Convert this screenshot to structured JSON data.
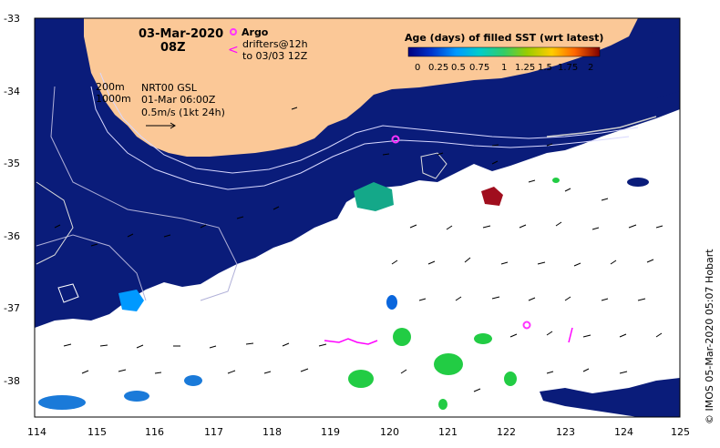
{
  "map": {
    "date": "03-Mar-2020",
    "time": "08Z",
    "argo_label": "Argo",
    "drifters_label_1": "drifters@12h",
    "drifters_label_2": "to 03/03 12Z",
    "contour_200": "200m",
    "contour_1000": "1000m",
    "gsl_label": "NRT00 GSL",
    "gsl_time": "01-Mar 06:00Z",
    "speed_ref": "0.5m/s (1kt 24h)",
    "credit": "© IMOS 05-Mar-2020 05:07 Hobart",
    "longitude_ticks": [
      "114",
      "115",
      "116",
      "117",
      "118",
      "119",
      "120",
      "121",
      "122",
      "123",
      "124",
      "125"
    ],
    "latitude_ticks": [
      "-33",
      "-34",
      "-35",
      "-36",
      "-37",
      "-38"
    ],
    "colors": {
      "land": "#fbc897",
      "ocean_recent": "#0a1c7a",
      "argo": "#ff33ff"
    }
  },
  "legend": {
    "title": "Age (days) of filled SST (wrt latest)",
    "tick_labels": [
      "0",
      "0.25",
      "0.5",
      "0.75",
      "1",
      "1.25",
      "1.5",
      "1.75",
      "2"
    ],
    "colors": [
      "#00007f",
      "#0033cc",
      "#0099ff",
      "#00cccc",
      "#33cc66",
      "#66cc33",
      "#cccc00",
      "#ff9900",
      "#cc3300",
      "#7f0000"
    ]
  }
}
